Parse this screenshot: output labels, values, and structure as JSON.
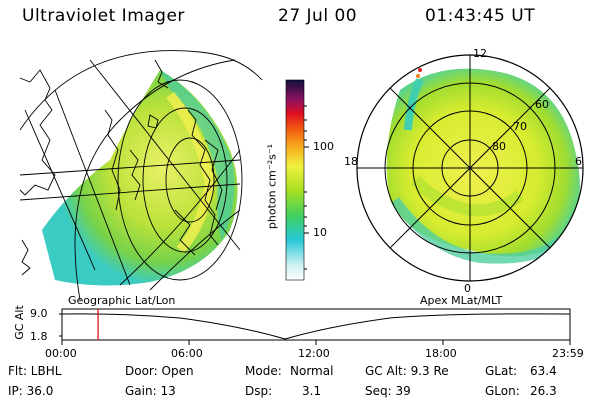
{
  "header": {
    "instrument": "Ultraviolet Imager",
    "date": "27 Jul 00",
    "time": "01:43:45 UT"
  },
  "left_panel": {
    "label": "Geographic Lat/Lon"
  },
  "right_panel": {
    "label": "Apex MLat/MLT",
    "mlt_labels": [
      "12",
      "18",
      "6",
      "0"
    ],
    "lat_labels": [
      "60",
      "70",
      "80"
    ]
  },
  "colorbar": {
    "unit_label": "photon cm⁻²s⁻¹",
    "tick_labels": [
      "100",
      "10"
    ]
  },
  "timeline": {
    "y_title": "GC Alt",
    "y_ticks": [
      "9.0",
      "1.8"
    ],
    "x_ticks": [
      "00:00",
      "06:00",
      "12:00",
      "18:00",
      "23:59"
    ],
    "current_marker_fraction": 0.071
  },
  "info": {
    "filter": "Flt: LBHL",
    "ip": "IP: 36.0",
    "door": "Door: Open",
    "gain": "Gain: 13",
    "mode_label": "Mode:",
    "mode_value": "Normal",
    "dsp_label": "Dsp:",
    "dsp_value": "3.1",
    "gc_alt": "GC Alt: 9.3 Re",
    "seq": "Seq: 39",
    "glat_label": "GLat:",
    "glat_value": "63.4",
    "glon_label": "GLon:",
    "glon_value": "26.3"
  },
  "colors": {
    "aurora_low": "#2fd6c8",
    "aurora_mid": "#8fdc1c",
    "aurora_high": "#f2f03a",
    "marker": "#e00000"
  }
}
